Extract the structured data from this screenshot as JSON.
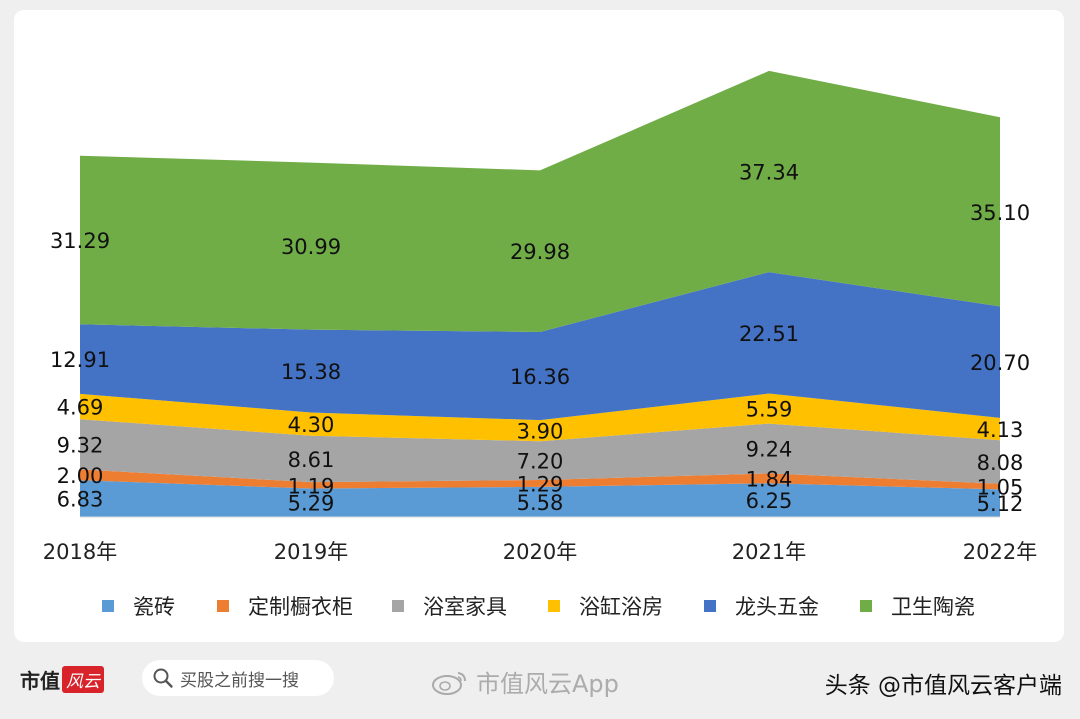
{
  "chart_data": {
    "type": "area",
    "stacked": true,
    "categories": [
      "2018年",
      "2019年",
      "2020年",
      "2021年",
      "2022年"
    ],
    "series": [
      {
        "name": "瓷砖",
        "color": "#5b9bd5",
        "values": [
          6.83,
          5.29,
          5.58,
          6.25,
          5.12
        ],
        "labels": [
          "6.83",
          "5.29",
          "5.58",
          "6.25",
          "5.12"
        ]
      },
      {
        "name": "定制橱衣柜",
        "color": "#ed7d31",
        "values": [
          2.0,
          1.19,
          1.29,
          1.84,
          1.05
        ],
        "labels": [
          "2.00",
          "1.19",
          "1.29",
          "1.84",
          "1.05"
        ]
      },
      {
        "name": "浴室家具",
        "color": "#a5a5a5",
        "values": [
          9.32,
          8.61,
          7.2,
          9.24,
          8.08
        ],
        "labels": [
          "9.32",
          "8.61",
          "7.20",
          "9.24",
          "8.08"
        ]
      },
      {
        "name": "浴缸浴房",
        "color": "#ffc000",
        "values": [
          4.69,
          4.3,
          3.9,
          5.59,
          4.13
        ],
        "labels": [
          "4.69",
          "4.30",
          "3.90",
          "5.59",
          "4.13"
        ]
      },
      {
        "name": "龙头五金",
        "color": "#4472c4",
        "values": [
          12.91,
          15.38,
          16.36,
          22.51,
          20.7
        ],
        "labels": [
          "12.91",
          "15.38",
          "16.36",
          "22.51",
          "20.70"
        ]
      },
      {
        "name": "卫生陶瓷",
        "color": "#70ad47",
        "values": [
          31.29,
          30.99,
          29.98,
          37.34,
          35.1
        ],
        "labels": [
          "31.29",
          "30.99",
          "29.98",
          "37.34",
          "35.10"
        ]
      }
    ],
    "ylim": [
      0,
      82
    ],
    "legend_position": "bottom",
    "grid": false
  },
  "footer": {
    "brand": "市值",
    "brand_mark": "风云",
    "search_placeholder": "买股之前搜一搜",
    "search_icon": "search-icon",
    "watermark_text": "市值风云App",
    "weibo_icon": "weibo-icon",
    "source": "头条 @市值风云客户端"
  }
}
